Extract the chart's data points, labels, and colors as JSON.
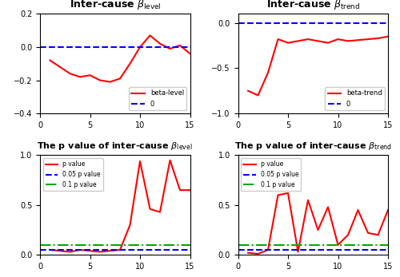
{
  "x_level": [
    1,
    2,
    3,
    4,
    5,
    6,
    7,
    8,
    9,
    10,
    11,
    12,
    13,
    14,
    15
  ],
  "beta_level": [
    -0.08,
    -0.12,
    -0.16,
    -0.18,
    -0.17,
    -0.2,
    -0.21,
    -0.19,
    -0.1,
    0.0,
    0.07,
    0.02,
    -0.01,
    0.01,
    -0.04
  ],
  "x_trend": [
    1,
    2,
    3,
    4,
    5,
    6,
    7,
    8,
    9,
    10,
    11,
    12,
    13,
    14,
    15
  ],
  "beta_trend": [
    -0.75,
    -0.8,
    -0.55,
    -0.18,
    -0.22,
    -0.2,
    -0.18,
    -0.2,
    -0.22,
    -0.18,
    -0.2,
    -0.19,
    -0.18,
    -0.17,
    -0.15
  ],
  "x_p_level": [
    1,
    2,
    3,
    4,
    5,
    6,
    7,
    8,
    9,
    10,
    11,
    12,
    13,
    14,
    15
  ],
  "p_level": [
    0.05,
    0.04,
    0.03,
    0.05,
    0.04,
    0.03,
    0.04,
    0.05,
    0.3,
    0.94,
    0.46,
    0.43,
    0.95,
    0.65,
    0.65
  ],
  "x_p_trend": [
    1,
    2,
    3,
    4,
    5,
    6,
    7,
    8,
    9,
    10,
    11,
    12,
    13,
    14,
    15
  ],
  "p_trend": [
    0.02,
    0.01,
    0.05,
    0.6,
    0.62,
    0.03,
    0.55,
    0.25,
    0.48,
    0.1,
    0.2,
    0.45,
    0.22,
    0.2,
    0.45
  ],
  "title_level": "Inter-cause $\\beta_{\\mathrm{level}}$",
  "title_trend": "Inter-cause $\\beta_{\\mathrm{trend}}$",
  "title_p_level": "The p value of inter-cause $\\beta_{\\mathrm{level}}$",
  "title_p_trend": "The p value of inter-cause $\\beta_{\\mathrm{trend}}$",
  "red": "#FF0000",
  "blue_dash": "#0000FF",
  "green_dashdot": "#00AA00",
  "p05": 0.05,
  "p10": 0.1,
  "ylim_level": [
    -0.4,
    0.2
  ],
  "ylim_trend": [
    -1.0,
    0.1
  ],
  "ylim_p": [
    0,
    1
  ],
  "xlim": [
    0,
    15
  ]
}
